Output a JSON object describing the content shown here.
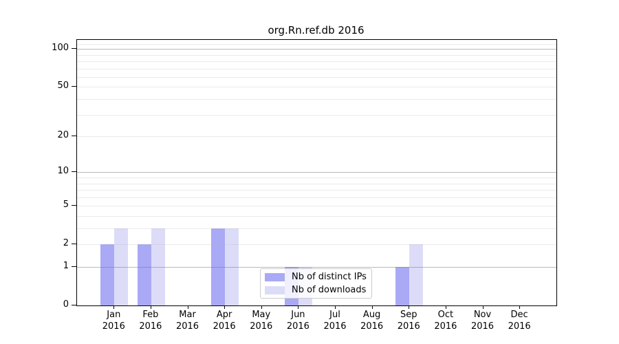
{
  "title": "org.Rn.ref.db 2016",
  "chart_data": {
    "type": "bar",
    "title": "org.Rn.ref.db 2016",
    "categories": [
      "Jan 2016",
      "Feb 2016",
      "Mar 2016",
      "Apr 2016",
      "May 2016",
      "Jun 2016",
      "Jul 2016",
      "Aug 2016",
      "Sep 2016",
      "Oct 2016",
      "Nov 2016",
      "Dec 2016"
    ],
    "series": [
      {
        "name": "Nb of distinct IPs",
        "color": "#a9a9f6",
        "values": [
          2,
          2,
          0,
          3,
          0,
          1,
          0,
          0,
          1,
          0,
          0,
          0
        ]
      },
      {
        "name": "Nb of downloads",
        "color": "#dcdcf9",
        "values": [
          3,
          3,
          0,
          3,
          0,
          1,
          0,
          0,
          2,
          0,
          0,
          0
        ]
      }
    ],
    "xlabel": "",
    "ylabel": "",
    "y_scale": "log1p",
    "ylim": [
      0,
      118
    ],
    "y_ticks": [
      0,
      1,
      2,
      5,
      10,
      20,
      50,
      100
    ],
    "grid_major": [
      1,
      10,
      100
    ],
    "grid_minor": [
      2,
      3,
      4,
      5,
      6,
      7,
      8,
      9,
      20,
      30,
      40,
      50,
      60,
      70,
      80,
      90,
      110
    ],
    "legend_position": "inside-bottom-center",
    "colors": {
      "axis": "#000000",
      "grid_major": "#bbbbbb",
      "grid_minor": "#ebebeb",
      "legend_border": "#cccccc"
    }
  }
}
